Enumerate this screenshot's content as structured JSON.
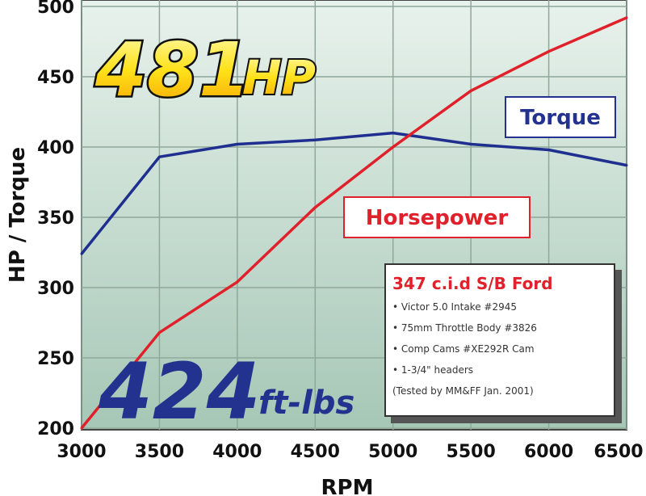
{
  "chart_data": {
    "type": "line",
    "xlabel": "RPM",
    "ylabel": "HP / Torque",
    "xlim": [
      3000,
      6500
    ],
    "ylim": [
      200,
      500
    ],
    "x_ticks": [
      "3000",
      "3500",
      "4000",
      "4500",
      "5000",
      "5500",
      "6000",
      "6500"
    ],
    "y_ticks": [
      "200",
      "250",
      "300",
      "350",
      "400",
      "450",
      "500"
    ],
    "grid": true,
    "x": [
      3000,
      3500,
      4000,
      4500,
      5000,
      5500,
      6000,
      6500
    ],
    "series": [
      {
        "name": "Torque",
        "color": "#1f2f8f",
        "values": [
          324,
          393,
          402,
          405,
          410,
          402,
          398,
          387
        ]
      },
      {
        "name": "Horsepower",
        "color": "#e0202a",
        "values": [
          200,
          268,
          304,
          357,
          400,
          440,
          468,
          492
        ]
      }
    ],
    "annotations": {
      "hp_headline": "481",
      "hp_unit": "HP",
      "torque_headline": "424",
      "torque_unit": "ft-lbs",
      "info_title": "347 c.i.d S/B Ford",
      "info_lines": [
        "• Victor 5.0 Intake #2945",
        "• 75mm Throttle Body #3826",
        "• Comp Cams #XE292R Cam",
        "• 1-3/4\" headers",
        "(Tested by MM&FF Jan. 2001)"
      ]
    },
    "colors": {
      "background_top": "#e6f0ea",
      "background_bottom": "#a9c9b8",
      "grid": "#8fa89a",
      "hp_text": "#ffd21a"
    }
  }
}
